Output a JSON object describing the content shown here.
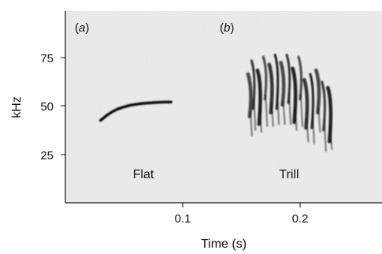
{
  "chart_data": {
    "type": "scatter",
    "title": "",
    "xlabel": "Time (s)",
    "ylabel": "kHz",
    "xlim": [
      0.0,
      0.27
    ],
    "ylim": [
      5,
      98
    ],
    "x_ticks": [
      0.1,
      0.2
    ],
    "x_tick_labels": [
      "0.1",
      "0.2"
    ],
    "y_ticks": [
      25,
      50,
      75
    ],
    "y_tick_labels": [
      "25",
      "50",
      "75"
    ],
    "grid": false,
    "legend": "none",
    "panels": [
      {
        "label_prefix": "(",
        "label_letter": "a",
        "label_suffix": ")",
        "call_name": "Flat"
      },
      {
        "label_prefix": "(",
        "label_letter": "b",
        "label_suffix": ")",
        "call_name": "Trill"
      }
    ],
    "series": [
      {
        "x": [
          0.03,
          0.035,
          0.04,
          0.045,
          0.05,
          0.055,
          0.06,
          0.065,
          0.07,
          0.075,
          0.08,
          0.085,
          0.09
        ],
        "y": [
          43,
          45.5,
          47.5,
          49,
          50,
          50.8,
          51.3,
          51.7,
          52,
          52.2,
          52.4,
          52.5,
          52.5
        ]
      },
      {
        "x": [
          0.157,
          0.16,
          0.165,
          0.17,
          0.175,
          0.18,
          0.185,
          0.19,
          0.195,
          0.2,
          0.205,
          0.21,
          0.215,
          0.22,
          0.225
        ],
        "y": [
          67,
          74,
          69,
          76,
          72,
          77,
          73,
          77,
          70,
          76,
          64,
          67,
          69,
          63,
          60
        ]
      }
    ]
  },
  "colors": {
    "trace": "#111111",
    "background": "#f2f2f2",
    "axis": "#111111"
  }
}
